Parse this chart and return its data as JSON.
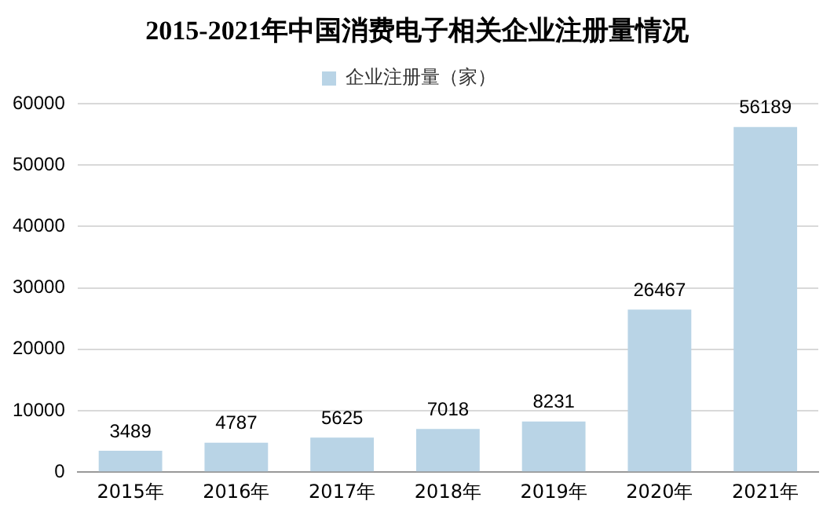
{
  "chart_data": {
    "type": "bar",
    "title": "2015-2021年中国消费电子相关企业注册量情况",
    "categories": [
      "2015年",
      "2016年",
      "2017年",
      "2018年",
      "2019年",
      "2020年",
      "2021年"
    ],
    "series": [
      {
        "name": "企业注册量（家）",
        "color": "#b9d4e6",
        "values": [
          3489,
          4787,
          5625,
          7018,
          8231,
          26467,
          56189
        ]
      }
    ],
    "ylim": [
      0,
      60000
    ],
    "yticks": [
      0,
      10000,
      20000,
      30000,
      40000,
      50000,
      60000
    ],
    "grid": "y",
    "legend": "top",
    "data_labels": true
  }
}
